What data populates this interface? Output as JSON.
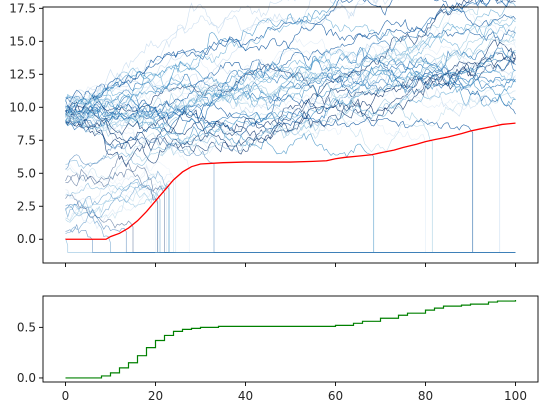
{
  "chart_data": [
    {
      "type": "line",
      "title": "",
      "xlabel": "",
      "ylabel": "",
      "xlim": [
        -5,
        105
      ],
      "ylim": [
        -1.8,
        17.6
      ],
      "x_ticks_shown": false,
      "y_ticks": [
        0.0,
        2.5,
        5.0,
        7.5,
        10.0,
        12.5,
        15.0,
        17.5
      ],
      "y_tick_labels": [
        "0.0",
        "2.5",
        "5.0",
        "7.5",
        "10.0",
        "12.5",
        "15.0",
        "17.5"
      ],
      "grid": false,
      "legend": "none",
      "description_series": {
        "random_walk_paths": {
          "count": 60,
          "start_band_high": [
            8.8,
            10.8
          ],
          "start_band_low": [
            0.0,
            5.8
          ],
          "absorbed_value": -1.0,
          "end_range_survivors": [
            7.5,
            16.5
          ],
          "colormap": "blues",
          "colors": [
            "#08306b",
            "#08519c",
            "#2171b5",
            "#4292c6",
            "#6baed6",
            "#9ecae1",
            "#c6dbef",
            "#deebf7"
          ]
        },
        "threshold": {
          "color": "#ff0000",
          "x": [
            0,
            9,
            10,
            12,
            14,
            16,
            18,
            20,
            22,
            24,
            26,
            28,
            30,
            35,
            40,
            45,
            50,
            55,
            58,
            60,
            62,
            65,
            68,
            70,
            73,
            75,
            78,
            80,
            82,
            85,
            88,
            90,
            92,
            95,
            97,
            100
          ],
          "y": [
            0.0,
            0.0,
            0.2,
            0.45,
            0.85,
            1.4,
            2.1,
            2.9,
            3.7,
            4.5,
            5.1,
            5.5,
            5.7,
            5.8,
            5.85,
            5.85,
            5.85,
            5.9,
            5.95,
            6.1,
            6.2,
            6.3,
            6.4,
            6.55,
            6.75,
            6.95,
            7.2,
            7.4,
            7.55,
            7.75,
            8.0,
            8.2,
            8.35,
            8.55,
            8.7,
            8.8
          ]
        }
      }
    },
    {
      "type": "line",
      "title": "",
      "xlabel": "",
      "ylabel": "",
      "xlim": [
        -5,
        105
      ],
      "ylim": [
        -0.04,
        0.81
      ],
      "x_ticks": [
        0,
        20,
        40,
        60,
        80,
        100
      ],
      "x_tick_labels": [
        "0",
        "20",
        "40",
        "60",
        "80",
        "100"
      ],
      "y_ticks": [
        0.0,
        0.5
      ],
      "y_tick_labels": [
        "0.0",
        "0.5"
      ],
      "grid": false,
      "legend": "none",
      "series": [
        {
          "color": "#008000",
          "x": [
            0,
            6,
            8,
            10,
            12,
            14,
            16,
            18,
            20,
            22,
            24,
            26,
            28,
            30,
            34,
            40,
            50,
            58,
            60,
            64,
            66,
            70,
            74,
            76,
            80,
            82,
            84,
            88,
            90,
            94,
            96,
            100
          ],
          "y": [
            0.0,
            0.0,
            0.02,
            0.05,
            0.1,
            0.15,
            0.22,
            0.3,
            0.37,
            0.42,
            0.46,
            0.48,
            0.49,
            0.5,
            0.51,
            0.51,
            0.51,
            0.51,
            0.52,
            0.54,
            0.56,
            0.59,
            0.62,
            0.64,
            0.67,
            0.69,
            0.71,
            0.72,
            0.73,
            0.75,
            0.76,
            0.77
          ]
        }
      ]
    }
  ]
}
